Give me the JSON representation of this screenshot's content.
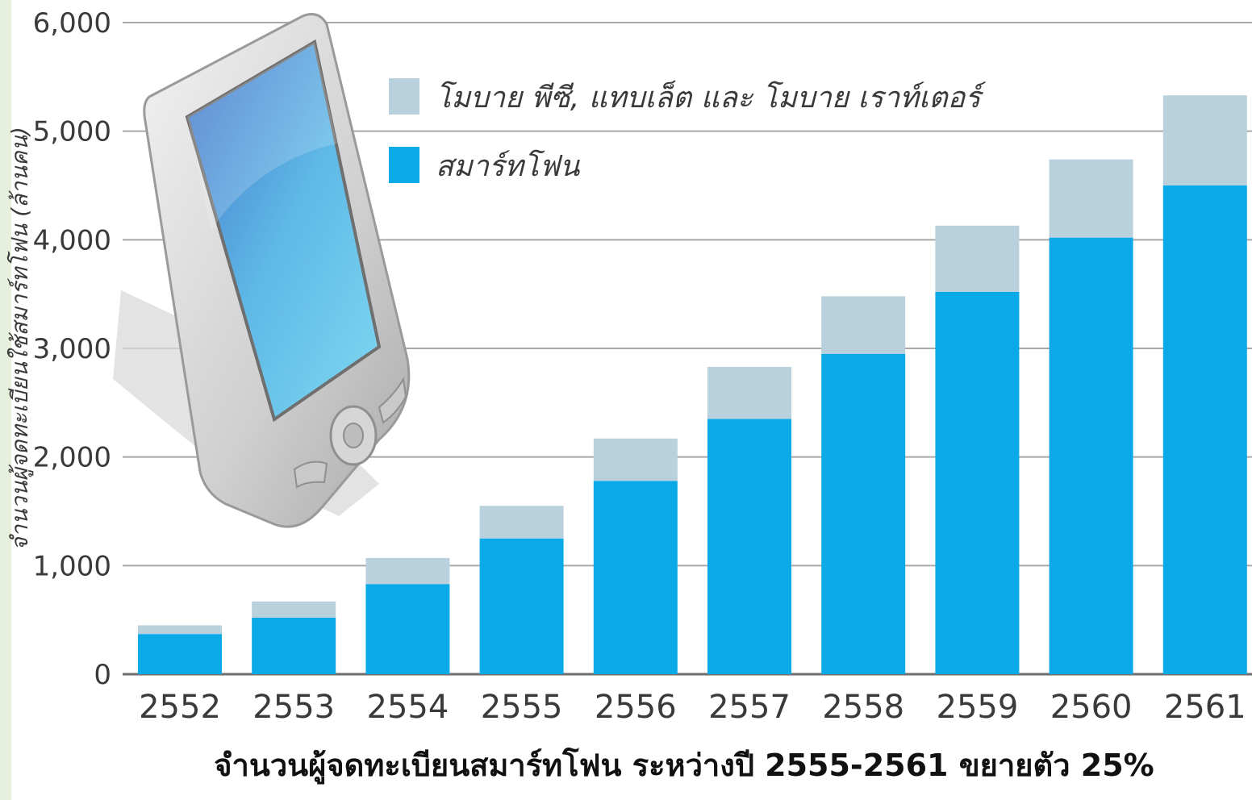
{
  "chart_data": {
    "type": "bar",
    "stacked": true,
    "categories": [
      "2552",
      "2553",
      "2554",
      "2555",
      "2556",
      "2557",
      "2558",
      "2559",
      "2560",
      "2561"
    ],
    "series": [
      {
        "name": "สมาร์ทโฟน",
        "color": "#0aa9e8",
        "values": [
          370,
          520,
          830,
          1250,
          1780,
          2350,
          2950,
          3520,
          4020,
          4500
        ]
      },
      {
        "name": "โมบาย พีซี, แทบเล็ต และ โมบาย เราท์เตอร์",
        "color": "#b8d1dc",
        "values": [
          80,
          150,
          240,
          300,
          390,
          480,
          530,
          610,
          720,
          830
        ]
      }
    ],
    "yticks": [
      "0",
      "1,000",
      "2,000",
      "3,000",
      "4,000",
      "5,000",
      "6,000"
    ],
    "ylim": [
      0,
      6000
    ],
    "ylabel": "จำนวนผู้จดทะเบียนใช้สมาร์ทโฟน (ล้านคน)",
    "xlabel": "จำนวนผู้จดทะเบียนสมาร์ทโฟน ระหว่างปี 2555-2561 ขยายตัว 25%",
    "grid": true,
    "legend_position": "top-center"
  },
  "illustration": {
    "icon": "smartphone-illustration-icon"
  }
}
